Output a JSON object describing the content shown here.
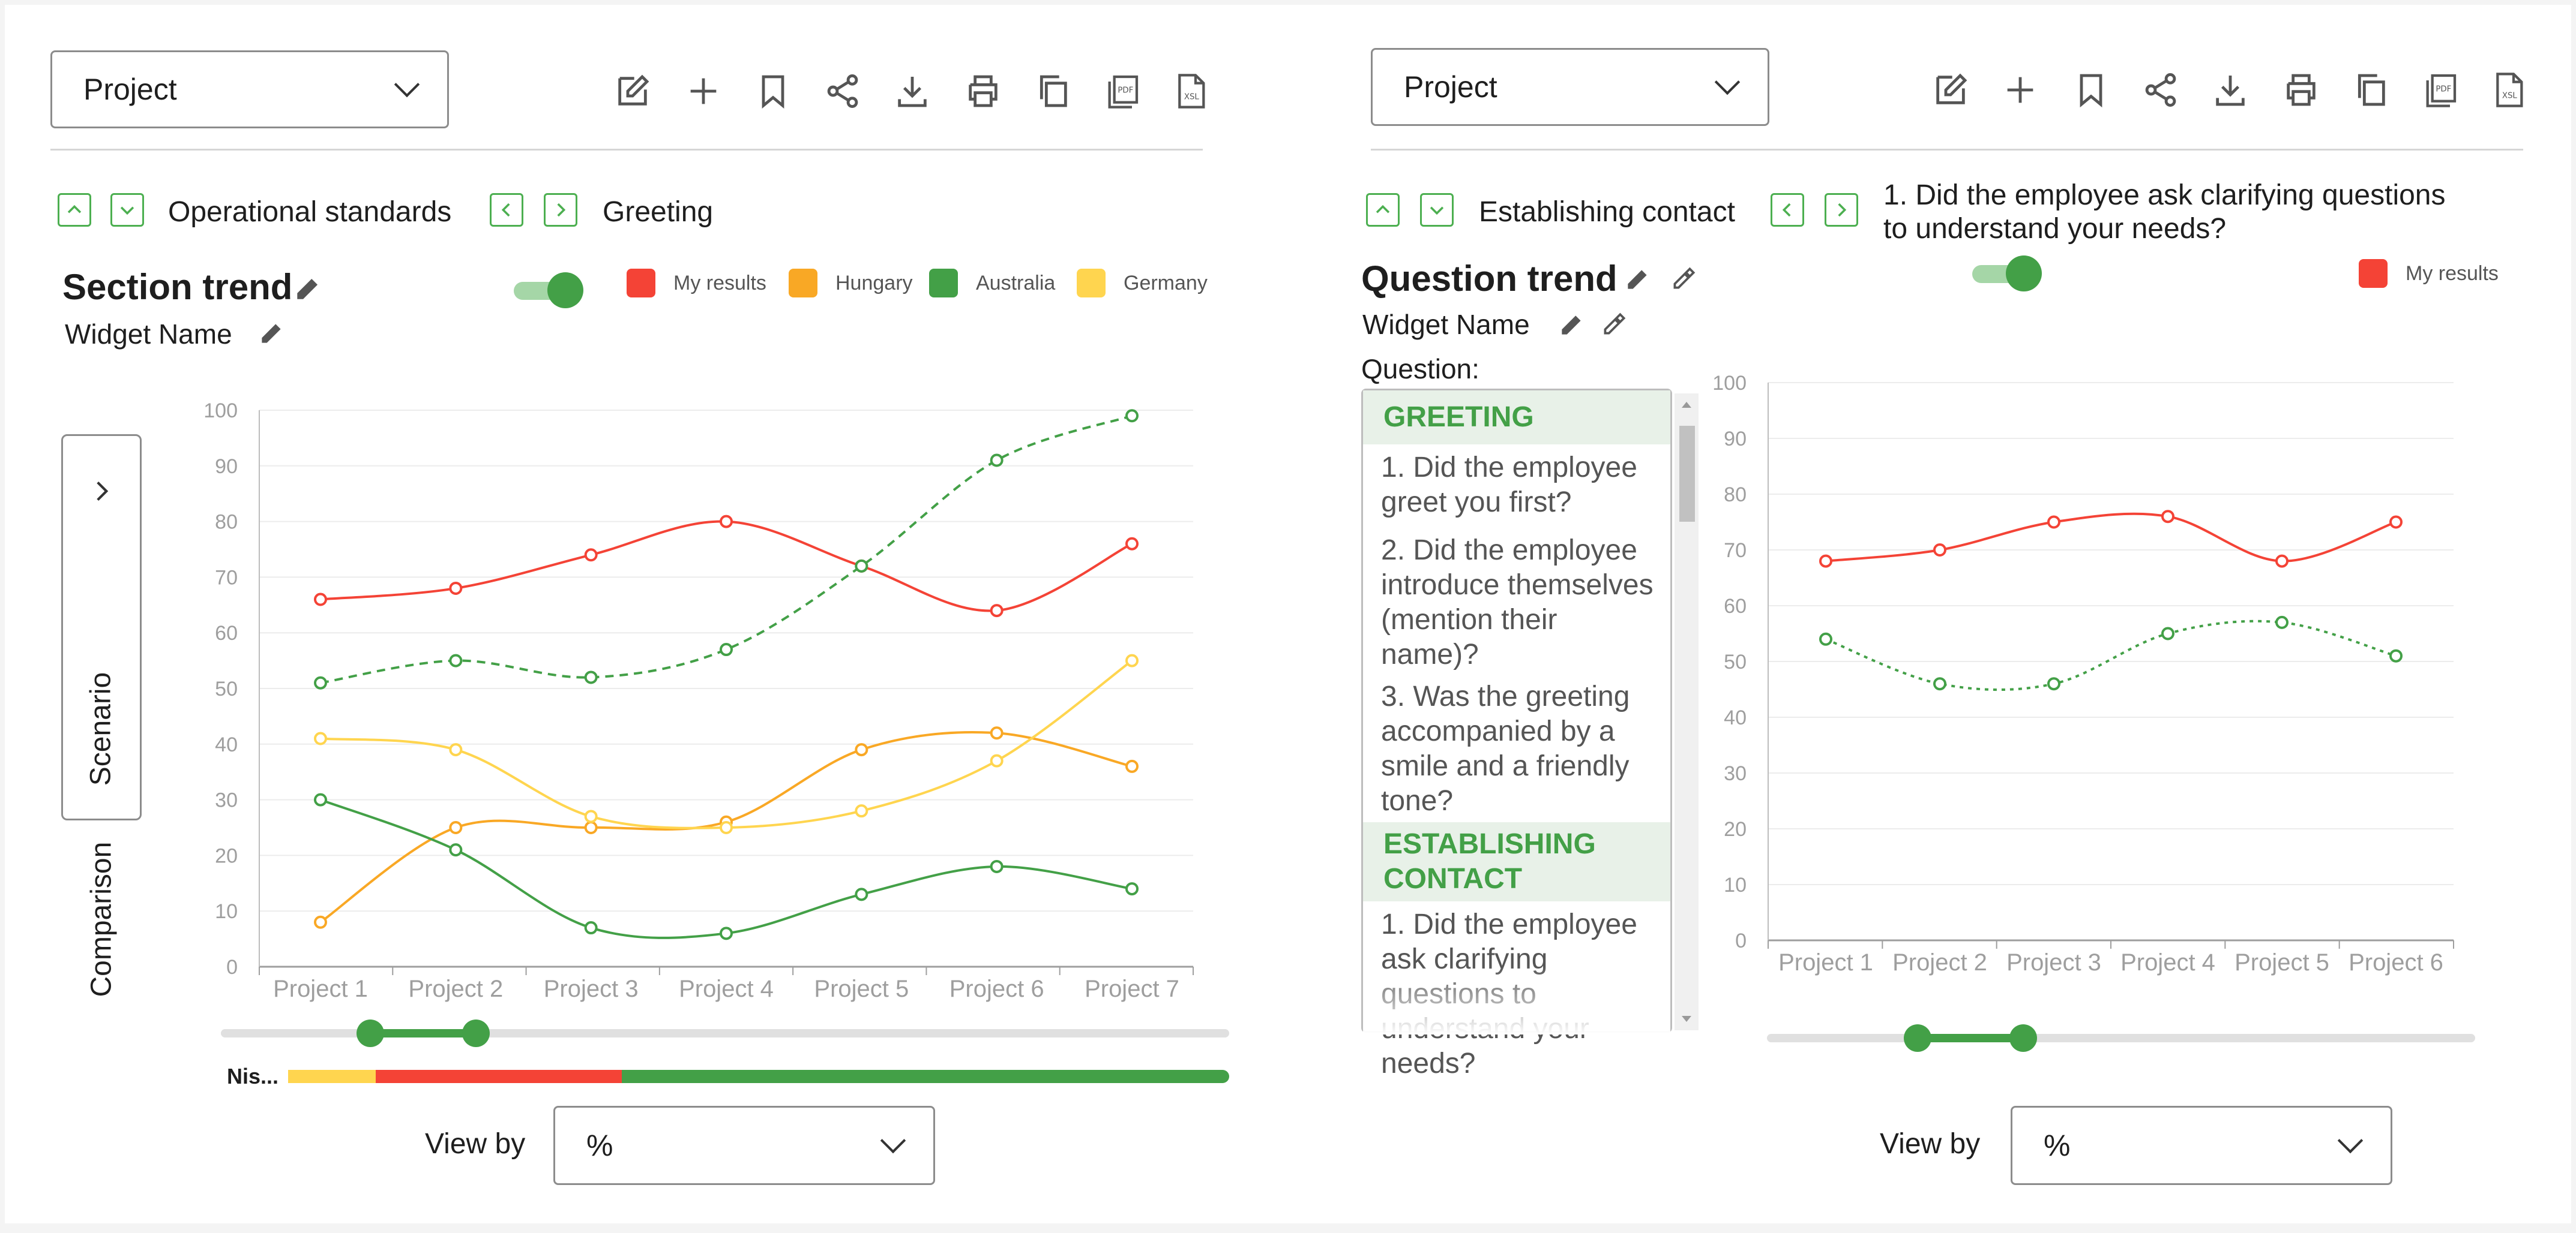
{
  "left": {
    "project_select": {
      "value": "Project"
    },
    "toolbar": [
      "edit-icon",
      "add-icon",
      "bookmark-icon",
      "share-icon",
      "download-icon",
      "print-icon",
      "copy-icon",
      "pdf-icon",
      "xsl-icon"
    ],
    "breadcrumb": {
      "section": "Operational standards",
      "item": "Greeting"
    },
    "title": "Section trend",
    "widget_name": "Widget Name",
    "toggle_on": true,
    "sidebar": {
      "scenario": "Scenario",
      "comparison": "Comparison"
    },
    "bar_label": "Nis...",
    "view_by": {
      "label": "View by",
      "value": "%"
    }
  },
  "right": {
    "project_select": {
      "value": "Project"
    },
    "toolbar": [
      "edit-icon",
      "add-icon",
      "bookmark-icon",
      "share-icon",
      "download-icon",
      "print-icon",
      "copy-icon",
      "pdf-icon",
      "xsl-icon"
    ],
    "breadcrumb": {
      "section": "Establishing contact",
      "item_line1": "1. Did the employee ask clarifying questions",
      "item_line2": "to understand your needs?"
    },
    "title": "Question trend",
    "widget_name": "Widget Name",
    "question_label": "Question:",
    "toggle_on": true,
    "questions": {
      "group1": "GREETING",
      "q1": "1. Did the employee greet you first?",
      "q2": "2. Did the employee introduce themselves (mention their name)?",
      "q3": "3. Was the greeting accompanied by a smile and a friendly tone?",
      "group2": "ESTABLISHING CONTACT",
      "q4": "1. Did the employee ask clarifying questions to understand your needs?"
    },
    "view_by": {
      "label": "View by",
      "value": "%"
    }
  },
  "colors": {
    "my_results": "#f44336",
    "hungary": "#f9a825",
    "australia": "#43a047",
    "germany": "#ffd54f"
  },
  "chart_data": [
    {
      "type": "line",
      "title": "Section trend",
      "categories": [
        "Project 1",
        "Project 2",
        "Project 3",
        "Project 4",
        "Project 5",
        "Project 6",
        "Project 7"
      ],
      "ylim": [
        0,
        100
      ],
      "yticks": [
        0,
        10,
        20,
        30,
        40,
        50,
        60,
        70,
        80,
        90,
        100
      ],
      "grid": true,
      "legend_position": "top-right",
      "series": [
        {
          "name": "My results",
          "color": "#f44336",
          "values": [
            66,
            68,
            74,
            80,
            72,
            64,
            76
          ]
        },
        {
          "name": "Hungary",
          "color": "#f9a825",
          "values": [
            8,
            25,
            25,
            26,
            39,
            42,
            36
          ]
        },
        {
          "name": "Australia",
          "color": "#43a047",
          "values": [
            30,
            21,
            7,
            6,
            13,
            18,
            14
          ]
        },
        {
          "name": "Germany",
          "color": "#ffd54f",
          "values": [
            41,
            39,
            27,
            25,
            28,
            37,
            55
          ]
        },
        {
          "name": "",
          "color": "#43a047",
          "dashed": true,
          "values": [
            51,
            55,
            52,
            57,
            72,
            91,
            99
          ]
        }
      ]
    },
    {
      "type": "line",
      "title": "Question trend",
      "categories": [
        "Project 1",
        "Project 2",
        "Project 3",
        "Project 4",
        "Project 5",
        "Project 6"
      ],
      "ylim": [
        0,
        100
      ],
      "yticks": [
        0,
        10,
        20,
        30,
        40,
        50,
        60,
        70,
        80,
        90,
        100
      ],
      "grid": true,
      "legend_position": "top-right",
      "series": [
        {
          "name": "My results",
          "color": "#f44336",
          "values": [
            68,
            70,
            75,
            76,
            68,
            75
          ]
        },
        {
          "name": "",
          "color": "#43a047",
          "dotted": true,
          "values": [
            54,
            46,
            46,
            55,
            57,
            51
          ]
        }
      ]
    }
  ]
}
